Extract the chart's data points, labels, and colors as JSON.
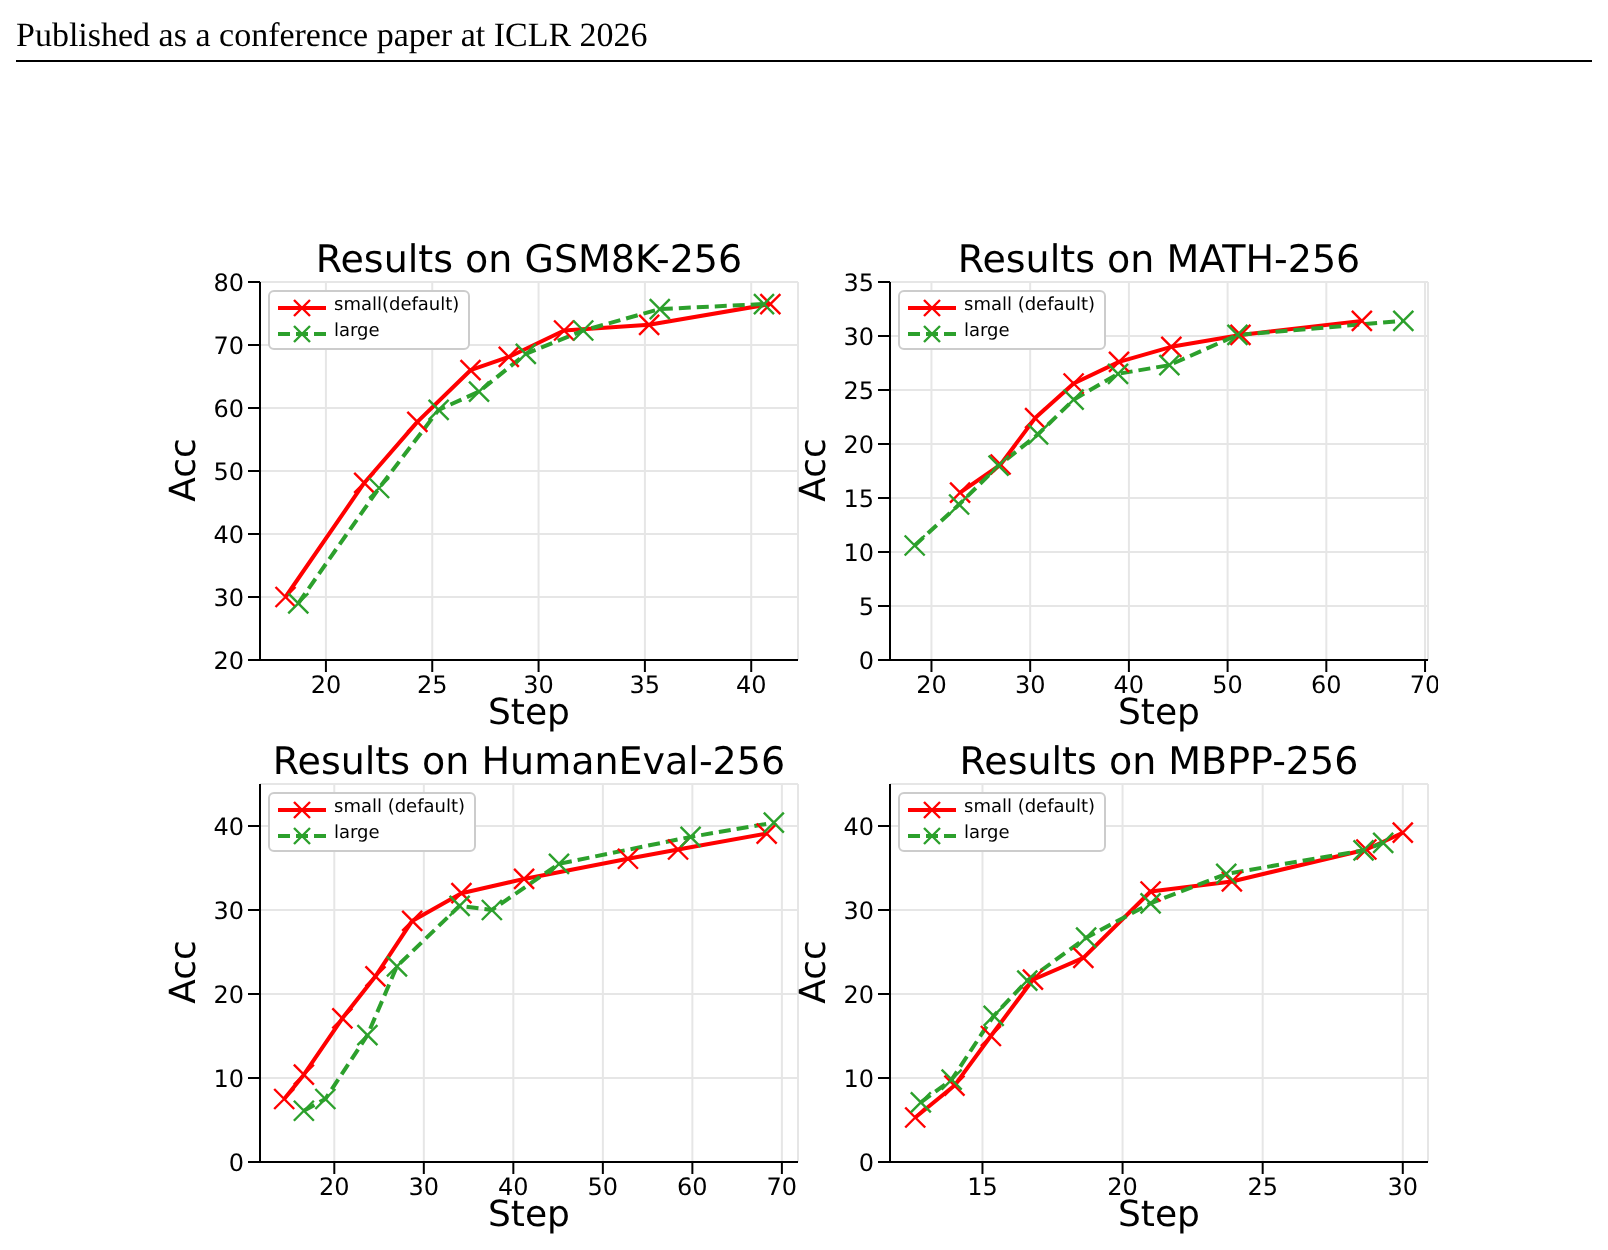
{
  "chart_data": [
    {
      "type": "line",
      "title": "Results on GSM8K-256",
      "xlabel": "Step",
      "ylabel": "Acc",
      "annotations": [
        "Published as a conference paper at ICLR 2026"
      ],
      "xlim": [
        16.9,
        42.2
      ],
      "xticks": [
        20,
        25,
        30,
        35,
        40
      ],
      "ylim": [
        20,
        80
      ],
      "yticks": [
        20,
        30,
        40,
        50,
        60,
        70,
        80
      ],
      "grid": true,
      "legend": "top left",
      "marker": "cross",
      "series": [
        {
          "name": "small(default)",
          "color": "#ff0000",
          "line_style": "solid",
          "x": [
            18.1,
            21.8,
            24.3,
            26.8,
            28.6,
            31.2,
            35.2,
            40.9
          ],
          "values": [
            30,
            48.1,
            57.8,
            66,
            68.1,
            72.3,
            73.2,
            76.5
          ]
        },
        {
          "name": "large",
          "color": "#2ca02c",
          "line_style": "dashed",
          "x": [
            18.7,
            22.5,
            25.3,
            27.2,
            29.4,
            32.1,
            35.7,
            40.6
          ],
          "values": [
            29,
            47.3,
            59.7,
            62.6,
            68.6,
            72.3,
            75.7,
            76.5
          ]
        }
      ]
    },
    {
      "type": "line",
      "title": "Results on MATH-256",
      "xlabel": "Step",
      "ylabel": "Acc",
      "xlim": [
        15.8,
        70.3
      ],
      "xticks": [
        20,
        30,
        40,
        50,
        60,
        70
      ],
      "ylim": [
        0,
        35
      ],
      "yticks": [
        0,
        5,
        10,
        15,
        20,
        25,
        30,
        35
      ],
      "grid": true,
      "legend": "top left",
      "marker": "cross",
      "series": [
        {
          "name": "small (default)",
          "color": "#ff0000",
          "line_style": "solid",
          "x": [
            22.9,
            27.0,
            30.5,
            34.4,
            39.0,
            44.3,
            51.3,
            63.6
          ],
          "values": [
            15.5,
            18.1,
            22.4,
            25.6,
            27.6,
            29.0,
            30.1,
            31.4
          ]
        },
        {
          "name": "large",
          "color": "#2ca02c",
          "line_style": "dashed",
          "x": [
            18.3,
            22.8,
            26.8,
            30.8,
            34.4,
            38.9,
            44.1,
            51.0,
            67.8
          ],
          "values": [
            10.6,
            14.4,
            18.0,
            20.9,
            24.1,
            26.5,
            27.3,
            30.1,
            31.4
          ]
        }
      ]
    },
    {
      "type": "line",
      "title": "Results on HumanEval-256",
      "xlabel": "Step",
      "ylabel": "Acc",
      "xlim": [
        11.7,
        71.8
      ],
      "xticks": [
        20,
        30,
        40,
        50,
        60,
        70
      ],
      "ylim": [
        0,
        45
      ],
      "yticks": [
        0,
        10,
        20,
        30,
        40
      ],
      "grid": true,
      "legend": "top left",
      "marker": "cross",
      "series": [
        {
          "name": "small (default)",
          "color": "#ff0000",
          "line_style": "solid",
          "x": [
            14.4,
            16.6,
            20.9,
            24.6,
            28.7,
            34.2,
            41.2,
            52.8,
            58.4,
            68.3
          ],
          "values": [
            7.5,
            10.4,
            17.1,
            22.1,
            28.7,
            32.0,
            33.7,
            36.1,
            37.2,
            39.1
          ]
        },
        {
          "name": "large",
          "color": "#2ca02c",
          "line_style": "dashed",
          "x": [
            16.6,
            19.0,
            23.7,
            27.0,
            34.0,
            37.6,
            45.1,
            59.8,
            69.1
          ],
          "values": [
            6.1,
            7.5,
            15.1,
            23.3,
            30.5,
            30.0,
            35.5,
            38.7,
            40.4
          ]
        }
      ]
    },
    {
      "type": "line",
      "title": "Results on MBPP-256",
      "xlabel": "Step",
      "ylabel": "Acc",
      "xlim": [
        11.7,
        30.9
      ],
      "xticks": [
        15,
        20,
        25,
        30
      ],
      "ylim": [
        0,
        45
      ],
      "yticks": [
        0,
        10,
        20,
        30,
        40
      ],
      "grid": true,
      "legend": "top left",
      "marker": "cross",
      "series": [
        {
          "name": "small (default)",
          "color": "#ff0000",
          "line_style": "solid",
          "x": [
            12.6,
            14.0,
            15.3,
            16.8,
            18.6,
            21.0,
            23.9,
            28.7,
            30.0
          ],
          "values": [
            5.3,
            9.1,
            15.0,
            21.7,
            24.3,
            32.2,
            33.4,
            37.2,
            39.2
          ]
        },
        {
          "name": "large",
          "color": "#2ca02c",
          "line_style": "dashed",
          "x": [
            12.8,
            13.9,
            15.4,
            16.6,
            18.7,
            21.0,
            23.7,
            28.6,
            29.3
          ],
          "values": [
            7.1,
            9.8,
            17.4,
            21.6,
            26.7,
            30.8,
            34.3,
            37.1,
            38.0
          ]
        }
      ]
    }
  ]
}
